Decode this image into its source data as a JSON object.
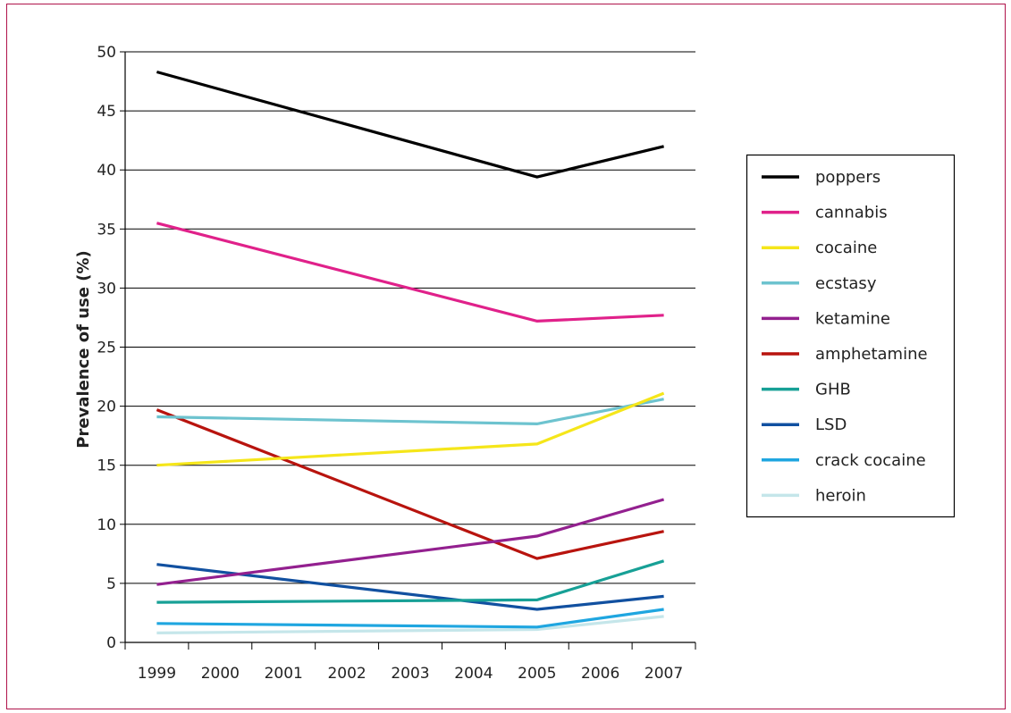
{
  "chart_data": {
    "type": "line",
    "ylabel": "Prevalence of use (%)",
    "xlabel": "",
    "ylim": [
      0,
      50
    ],
    "yticks": [
      0,
      5,
      10,
      15,
      20,
      25,
      30,
      35,
      40,
      45,
      50
    ],
    "categories": [
      "1999",
      "2000",
      "2001",
      "2002",
      "2003",
      "2004",
      "2005",
      "2006",
      "2007"
    ],
    "grid": "horizontal",
    "legend_position": "right",
    "series": [
      {
        "name": "poppers",
        "color": "#000000",
        "x": [
          "1999",
          "2005",
          "2007"
        ],
        "values": [
          48.3,
          39.4,
          42.0
        ]
      },
      {
        "name": "cannabis",
        "color": "#e0218a",
        "x": [
          "1999",
          "2005",
          "2007"
        ],
        "values": [
          35.5,
          27.2,
          27.7
        ]
      },
      {
        "name": "cocaine",
        "color": "#f5e61a",
        "x": [
          "1999",
          "2005",
          "2007"
        ],
        "values": [
          15.0,
          16.8,
          21.1
        ]
      },
      {
        "name": "ecstasy",
        "color": "#6dc3cf",
        "x": [
          "1999",
          "2005",
          "2007"
        ],
        "values": [
          19.1,
          18.5,
          20.6
        ]
      },
      {
        "name": "ketamine",
        "color": "#93208f",
        "x": [
          "1999",
          "2005",
          "2007"
        ],
        "values": [
          4.9,
          9.0,
          12.1
        ]
      },
      {
        "name": "amphetamine",
        "color": "#b8140e",
        "x": [
          "1999",
          "2005",
          "2007"
        ],
        "values": [
          19.7,
          7.1,
          9.4
        ]
      },
      {
        "name": "GHB",
        "color": "#17a096",
        "x": [
          "1999",
          "2005",
          "2007"
        ],
        "values": [
          3.4,
          3.6,
          6.9
        ]
      },
      {
        "name": "LSD",
        "color": "#1150a0",
        "x": [
          "1999",
          "2005",
          "2007"
        ],
        "values": [
          6.6,
          2.8,
          3.9
        ]
      },
      {
        "name": "crack cocaine",
        "color": "#1fa6e0",
        "x": [
          "1999",
          "2005",
          "2007"
        ],
        "values": [
          1.6,
          1.3,
          2.8
        ]
      },
      {
        "name": "heroin",
        "color": "#c5e6ea",
        "x": [
          "1999",
          "2005",
          "2007"
        ],
        "values": [
          0.8,
          1.1,
          2.2
        ]
      }
    ]
  },
  "colors": {
    "frame_border": "#b0134b",
    "grid": "#000000",
    "axis": "#000000"
  }
}
